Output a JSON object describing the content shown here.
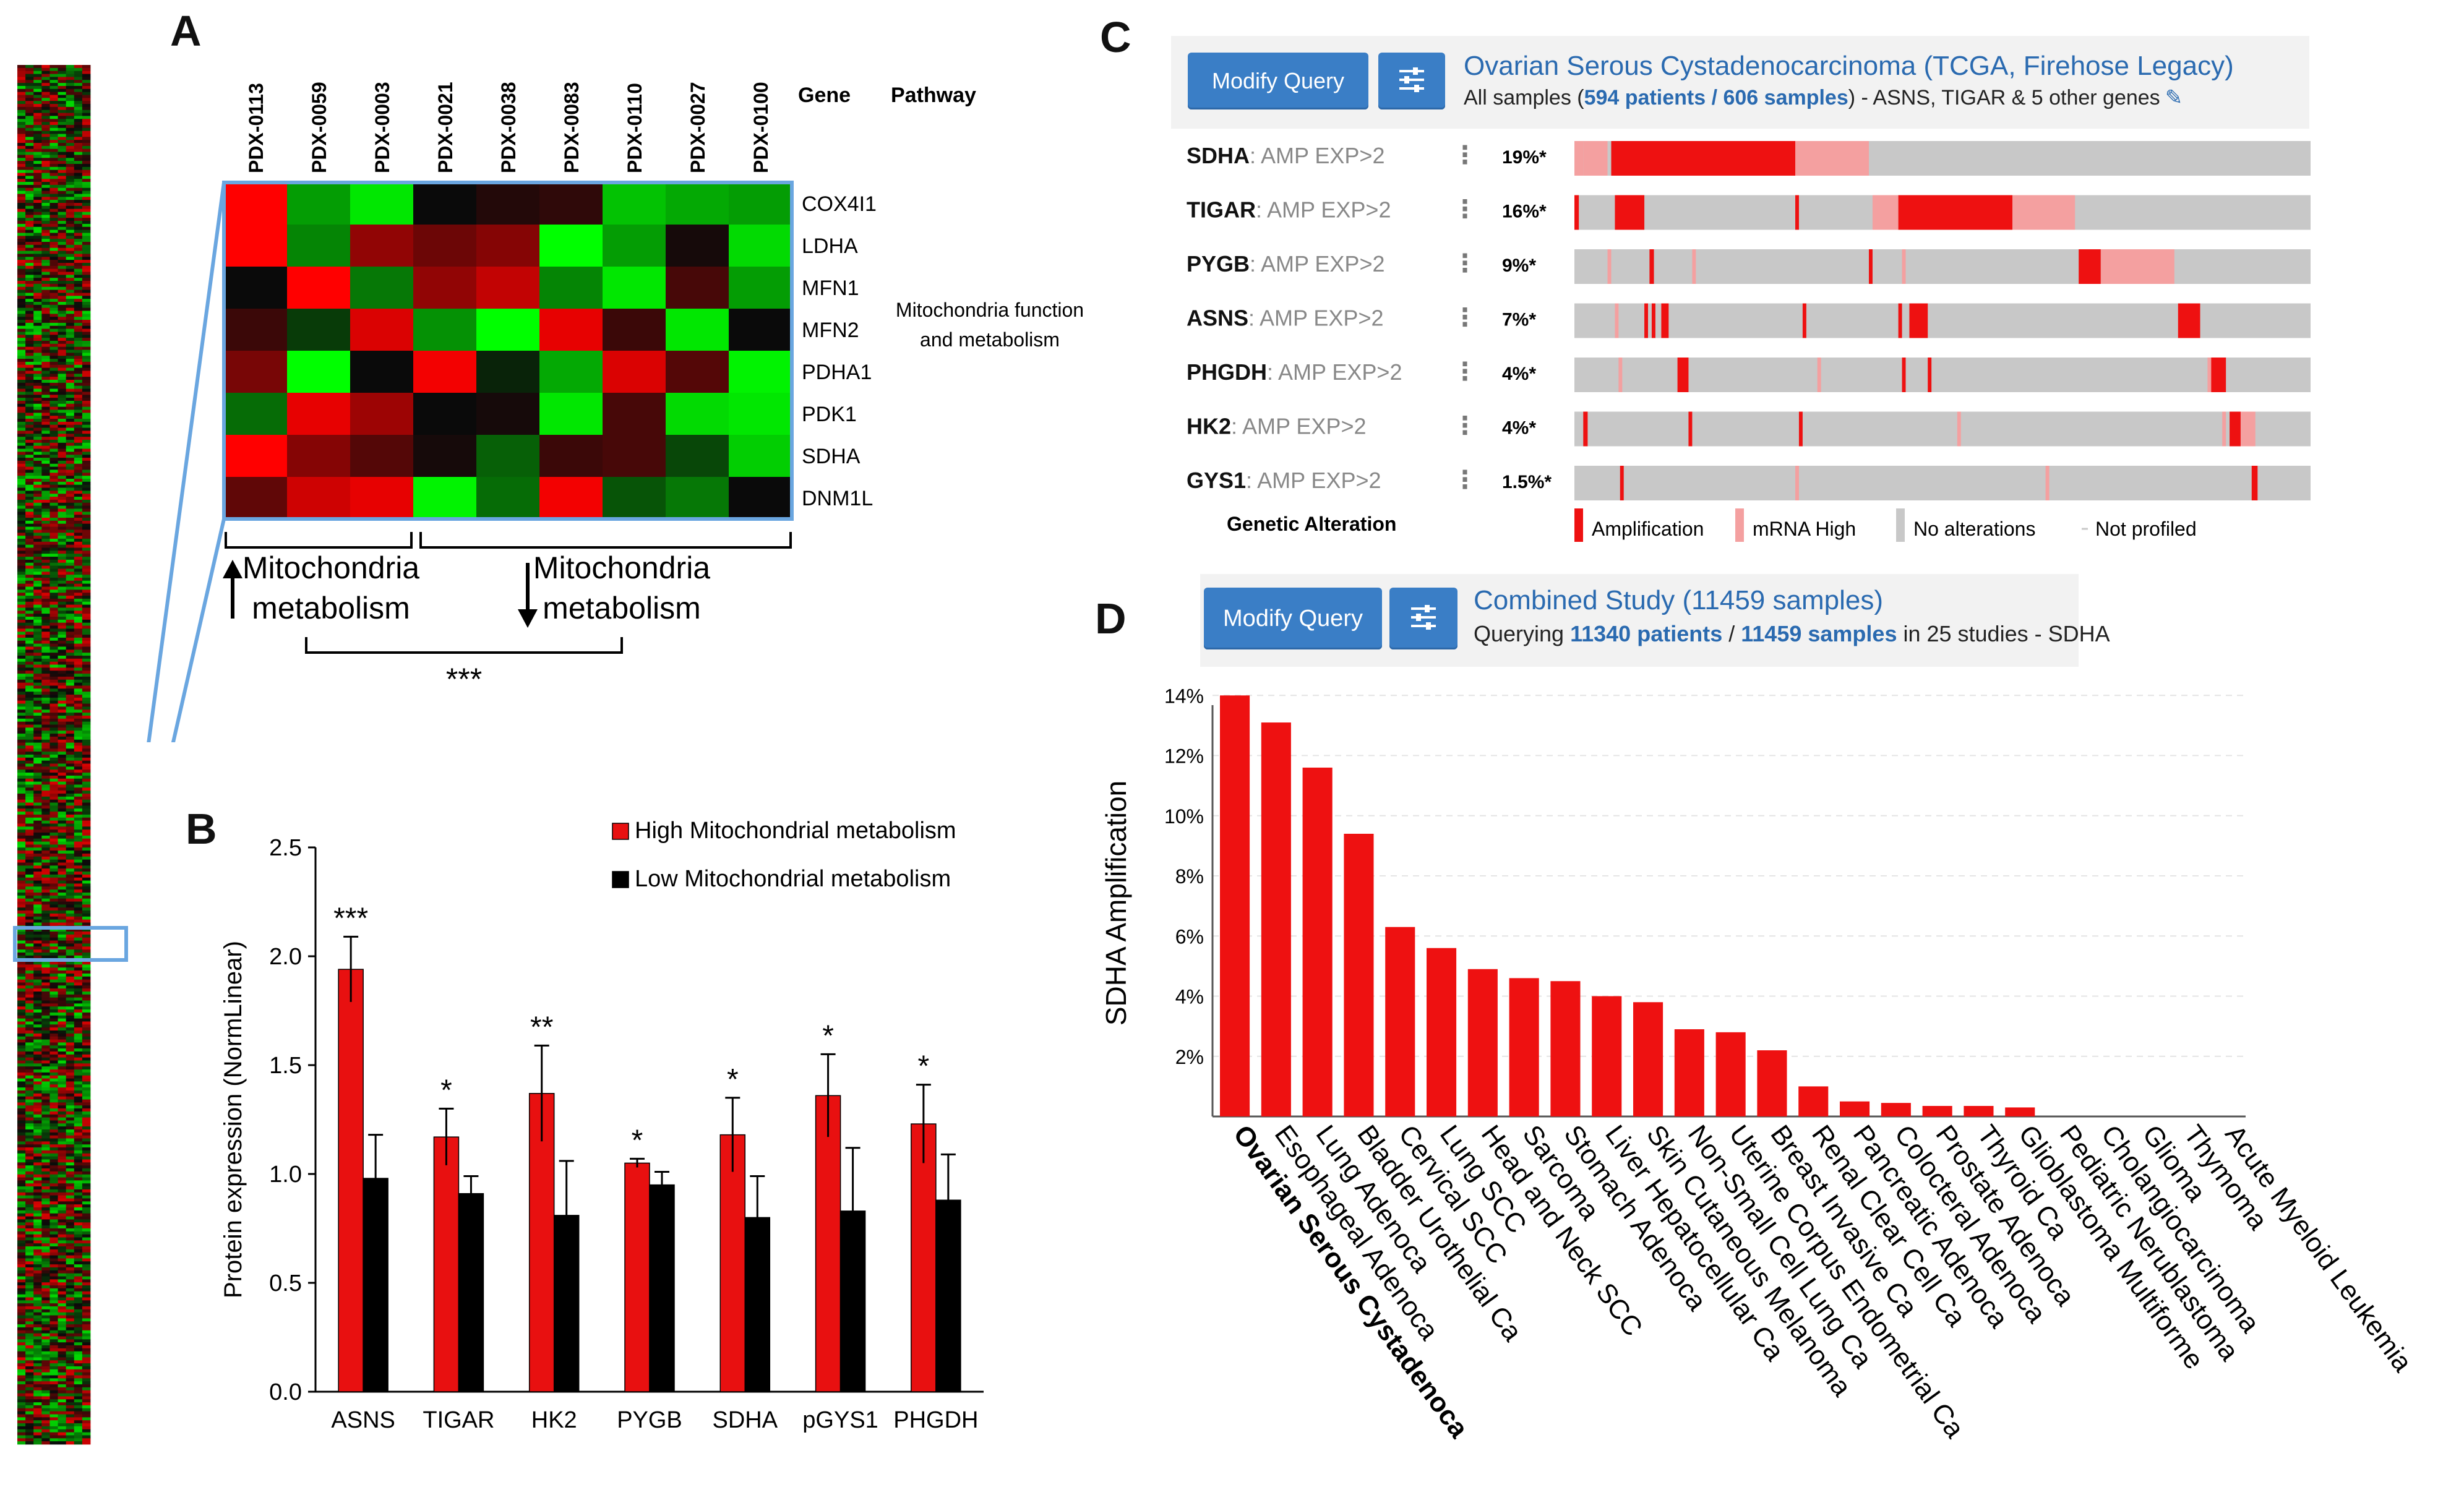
{
  "panels": {
    "A": "A",
    "B": "B",
    "C": "C",
    "D": "D"
  },
  "colors": {
    "red": "#ff1a1a",
    "green": "#1aff1a",
    "blue_outline": "#6aa6e0",
    "button": "#3a7ec6",
    "link": "#2a6ab0",
    "grey_track": "#c8c8c8"
  },
  "chart_data": [
    {
      "id": "A",
      "type": "heatmap",
      "title": "",
      "columns": [
        "PDX-0113",
        "PDX-0059",
        "PDX-0003",
        "PDX-0021",
        "PDX-0038",
        "PDX-0083",
        "PDX-0110",
        "PDX-0027",
        "PDX-0100"
      ],
      "rows": [
        "COX4I1",
        "LDHA",
        "MFN1",
        "MFN2",
        "PDHA1",
        "PDK1",
        "SDHA",
        "DNM1L"
      ],
      "col_header_gene": "Gene",
      "col_header_pathway": "Pathway",
      "pathway_line1": "Mitochondria function",
      "pathway_line2": "and metabolism",
      "values": [
        [
          1.0,
          -0.6,
          -0.9,
          0.0,
          0.1,
          0.15,
          -0.75,
          -0.65,
          -0.6
        ],
        [
          1.0,
          -0.5,
          0.55,
          0.4,
          0.5,
          -1.0,
          -0.6,
          0.05,
          -0.85
        ],
        [
          0.0,
          1.0,
          -0.45,
          0.55,
          0.75,
          -0.5,
          -0.9,
          0.25,
          -0.6
        ],
        [
          0.2,
          -0.2,
          0.85,
          -0.55,
          -1.0,
          0.9,
          0.2,
          -0.9,
          0.0
        ],
        [
          0.45,
          -1.0,
          0.0,
          0.95,
          -0.1,
          -0.65,
          0.85,
          0.3,
          -0.95
        ],
        [
          -0.4,
          0.9,
          0.6,
          0.0,
          0.05,
          -0.9,
          0.25,
          -0.85,
          -0.9
        ],
        [
          1.0,
          0.5,
          0.3,
          0.05,
          -0.35,
          0.2,
          0.25,
          -0.25,
          -0.8
        ],
        [
          0.35,
          0.8,
          0.9,
          -0.95,
          -0.4,
          0.95,
          -0.3,
          -0.45,
          0.0
        ]
      ],
      "group_high_l1": "Mitochondria",
      "group_high_l2": "metabolism",
      "group_low_l1": "Mitochondria",
      "group_low_l2": "metabolism",
      "significance": "***"
    },
    {
      "id": "B",
      "type": "bar",
      "categories": [
        "ASNS",
        "TIGAR",
        "HK2",
        "PYGB",
        "SDHA",
        "pGYS1",
        "PHGDH"
      ],
      "series": [
        {
          "name": "High Mitochondrial metabolism",
          "values": [
            1.94,
            1.17,
            1.37,
            1.05,
            1.18,
            1.36,
            1.23
          ],
          "errors": [
            0.15,
            0.13,
            0.22,
            0.02,
            0.17,
            0.19,
            0.18
          ],
          "color": "#e81010"
        },
        {
          "name": "Low Mitochondrial metabolism",
          "values": [
            0.98,
            0.91,
            0.81,
            0.95,
            0.8,
            0.83,
            0.88
          ],
          "errors": [
            0.2,
            0.08,
            0.25,
            0.06,
            0.19,
            0.29,
            0.21
          ],
          "color": "#000000"
        }
      ],
      "annotations": [
        "***",
        "*",
        "**",
        "*",
        "*",
        "*",
        "*"
      ],
      "ylabel": "Protein expression (NormLinear)",
      "xlabel": "",
      "ylim": [
        0,
        2.5
      ],
      "yticks": [
        "0.0",
        "0.5",
        "1.0",
        "1.5",
        "2.0",
        "2.5"
      ]
    },
    {
      "id": "C",
      "type": "oncoprint",
      "button": "Modify Query",
      "study_title": "Ovarian Serous Cystadenocarcinoma (TCGA, Firehose Legacy)",
      "summary_prefix": "All samples (",
      "patients": "594 patients",
      "separator": " / ",
      "samples": "606 samples",
      "summary_suffix": ")  - ASNS, TIGAR & 5 other genes",
      "genes": [
        {
          "gene": "SDHA",
          "label": ": AMP EXP>2",
          "pct": "19%*",
          "amp_segments": [
            [
              0.0,
              0.012,
              "m"
            ],
            [
              0.012,
              0.045,
              "m"
            ],
            [
              0.05,
              0.3,
              "a"
            ],
            [
              0.3,
              0.4,
              "m"
            ]
          ]
        },
        {
          "gene": "TIGAR",
          "label": ": AMP EXP>2",
          "pct": "16%*",
          "amp_segments": [
            [
              0.0,
              0.006,
              "a"
            ],
            [
              0.055,
              0.095,
              "a"
            ],
            [
              0.3,
              0.305,
              "a"
            ],
            [
              0.405,
              0.44,
              "m"
            ],
            [
              0.44,
              0.595,
              "a"
            ],
            [
              0.595,
              0.68,
              "m"
            ]
          ]
        },
        {
          "gene": "PYGB",
          "label": ": AMP EXP>2",
          "pct": "9%*",
          "amp_segments": [
            [
              0.045,
              0.05,
              "m"
            ],
            [
              0.102,
              0.108,
              "a"
            ],
            [
              0.16,
              0.165,
              "m"
            ],
            [
              0.4,
              0.405,
              "a"
            ],
            [
              0.445,
              0.45,
              "m"
            ],
            [
              0.685,
              0.715,
              "a"
            ],
            [
              0.715,
              0.815,
              "m"
            ]
          ]
        },
        {
          "gene": "ASNS",
          "label": ": AMP EXP>2",
          "pct": "7%*",
          "amp_segments": [
            [
              0.055,
              0.06,
              "m"
            ],
            [
              0.095,
              0.1,
              "a"
            ],
            [
              0.105,
              0.11,
              "a"
            ],
            [
              0.118,
              0.128,
              "a"
            ],
            [
              0.31,
              0.315,
              "a"
            ],
            [
              0.44,
              0.445,
              "a"
            ],
            [
              0.455,
              0.48,
              "a"
            ],
            [
              0.82,
              0.825,
              "m"
            ],
            [
              0.82,
              0.85,
              "a"
            ]
          ]
        },
        {
          "gene": "PHGDH",
          "label": ": AMP EXP>2",
          "pct": "4%*",
          "amp_segments": [
            [
              0.06,
              0.065,
              "m"
            ],
            [
              0.14,
              0.155,
              "a"
            ],
            [
              0.33,
              0.335,
              "m"
            ],
            [
              0.445,
              0.45,
              "a"
            ],
            [
              0.48,
              0.485,
              "a"
            ],
            [
              0.86,
              0.865,
              "m"
            ],
            [
              0.865,
              0.885,
              "a"
            ]
          ]
        },
        {
          "gene": "HK2",
          "label": ": AMP EXP>2",
          "pct": "4%*",
          "amp_segments": [
            [
              0.012,
              0.018,
              "a"
            ],
            [
              0.155,
              0.16,
              "a"
            ],
            [
              0.305,
              0.31,
              "a"
            ],
            [
              0.52,
              0.525,
              "m"
            ],
            [
              0.88,
              0.885,
              "m"
            ],
            [
              0.89,
              0.905,
              "a"
            ],
            [
              0.905,
              0.925,
              "m"
            ]
          ]
        },
        {
          "gene": "GYS1",
          "label": ": AMP EXP>2",
          "pct": "1.5%*",
          "amp_segments": [
            [
              0.062,
              0.067,
              "a"
            ],
            [
              0.3,
              0.305,
              "m"
            ],
            [
              0.64,
              0.645,
              "m"
            ],
            [
              0.92,
              0.928,
              "a"
            ]
          ]
        }
      ],
      "legend_title": "Genetic Alteration",
      "legend": [
        "Amplification",
        "mRNA High",
        "No alterations",
        "Not profiled"
      ]
    },
    {
      "id": "D",
      "type": "bar",
      "button": "Modify Query",
      "study_title": "Combined Study (11459 samples)",
      "summary_prefix": "Querying ",
      "patients": "11340 patients",
      "separator": " / ",
      "samples": "11459 samples",
      "summary_suffix": " in 25 studies  - SDHA",
      "ylabel": "SDHA Amplification",
      "xlabel": "",
      "ylim": [
        0,
        14.5
      ],
      "yticks": [
        "2%",
        "4%",
        "6%",
        "8%",
        "10%",
        "12%",
        "14%"
      ],
      "categories": [
        "Ovarian Serous Cystadenoca",
        "Esophageal Adenoca",
        "Lung Adenoca",
        "Bladder Urothelial Ca",
        "Cervical SCC",
        "Lung SCC",
        "Head and Neck SCC",
        "Sarcoma",
        "Stomach Adenoca",
        "Liver Hepatocellular Ca",
        "Skin Cutaneous Melanoma",
        "Non-Small Cell Lung Ca",
        "Uterine Corpus Endometrial Ca",
        "Breast Invasive Ca",
        "Renal Clear Cell Ca",
        "Pancreatic Adenoca",
        "Colocteral Adenoca",
        "Prostate Adenoca",
        "Thyroid Ca",
        "Glioblastoma Multiforme",
        "Pediatric Nerublastoma",
        "Cholangiocarcinoma",
        "Glioma",
        "Thymoma",
        "Acute Myeloid Leukemia"
      ],
      "values": [
        14.0,
        13.1,
        11.6,
        9.4,
        6.3,
        5.6,
        4.9,
        4.6,
        4.5,
        4.0,
        3.8,
        2.9,
        2.8,
        2.2,
        1.0,
        0.5,
        0.45,
        0.35,
        0.35,
        0.3,
        0.0,
        0.0,
        0.0,
        0.0,
        0.0
      ]
    }
  ]
}
